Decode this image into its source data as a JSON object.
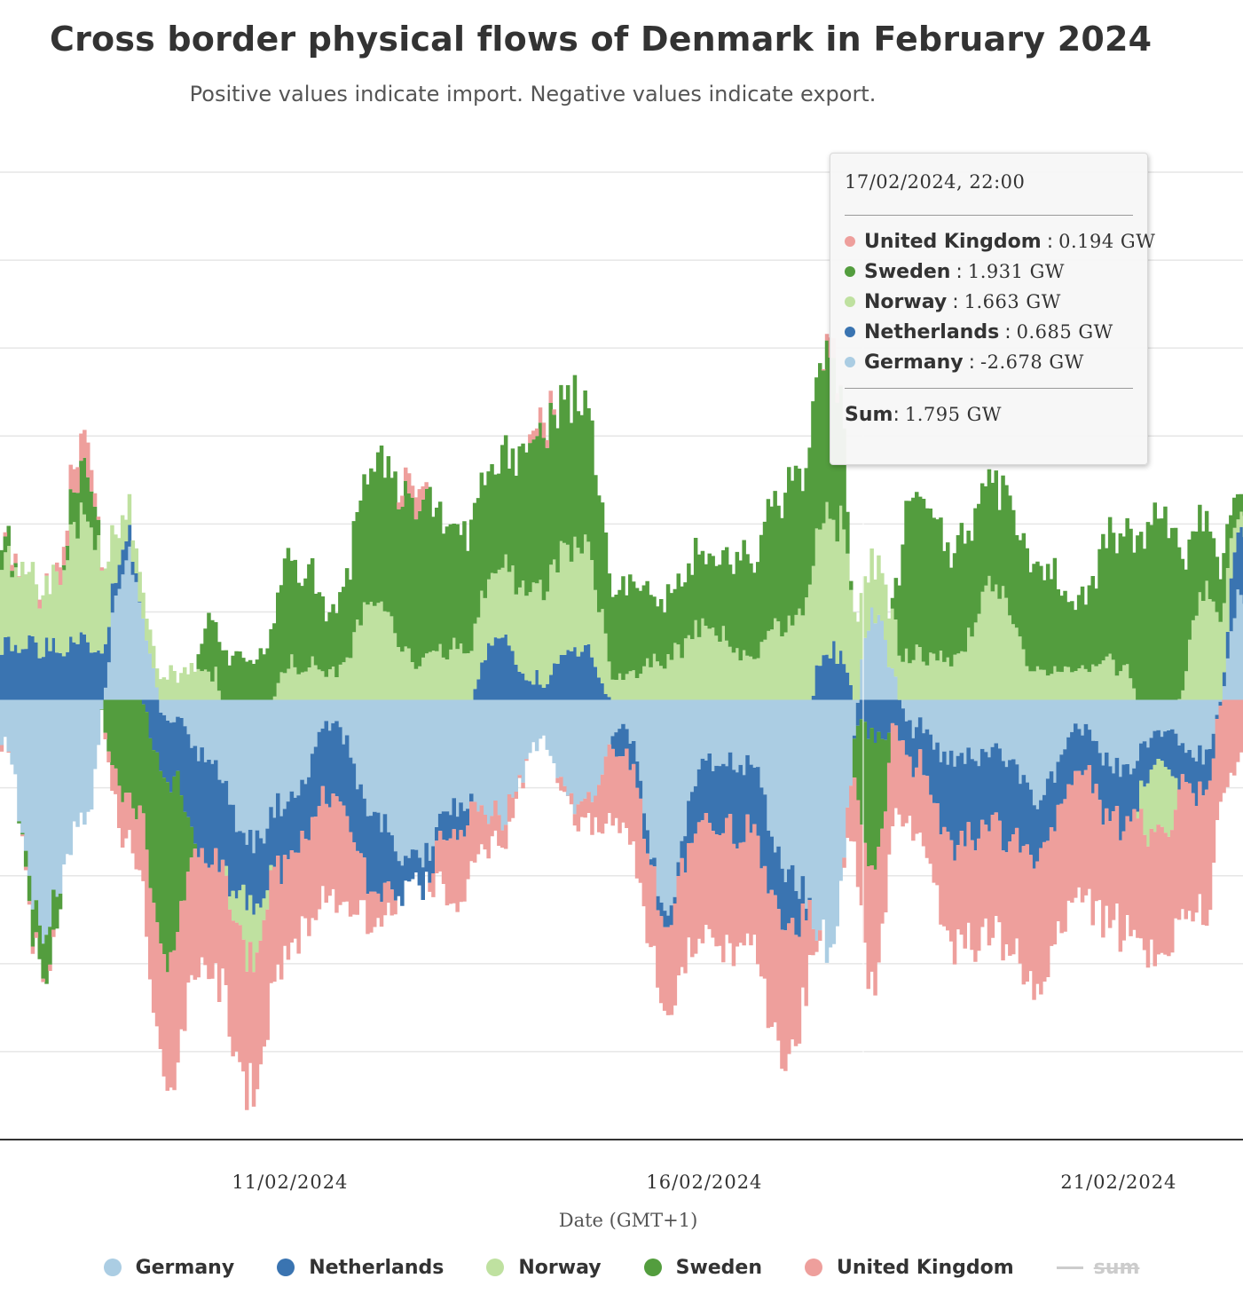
{
  "title": "Cross border physical flows of Denmark in February 2024",
  "subtitle": "Positive values indicate import. Negative values indicate export.",
  "chart_data": {
    "type": "area",
    "stacked": true,
    "x_unit": "date",
    "xlabel": "Date (GMT+1)",
    "x_ticks": [
      "11/02/2024",
      "16/02/2024",
      "21/02/2024"
    ],
    "y_unit": "GW",
    "ylim": [
      -5,
      6
    ],
    "y_gridlines": [
      -4,
      -3,
      -2,
      -1,
      0,
      1,
      2,
      3,
      4,
      5,
      6
    ],
    "y_tick_labels_visible": false,
    "x_range": [
      "2024-02-07T12:00",
      "2024-02-22T12:00"
    ],
    "sample_times": [
      "2024-02-07T12:00",
      "2024-02-08T00:00",
      "2024-02-08T12:00",
      "2024-02-09T00:00",
      "2024-02-09T12:00",
      "2024-02-10T00:00",
      "2024-02-10T12:00",
      "2024-02-11T00:00",
      "2024-02-11T12:00",
      "2024-02-12T00:00",
      "2024-02-12T12:00",
      "2024-02-13T00:00",
      "2024-02-13T12:00",
      "2024-02-14T00:00",
      "2024-02-14T12:00",
      "2024-02-15T00:00",
      "2024-02-15T12:00",
      "2024-02-16T00:00",
      "2024-02-16T12:00",
      "2024-02-17T00:00",
      "2024-02-17T12:00",
      "2024-02-18T00:00",
      "2024-02-18T12:00",
      "2024-02-19T00:00",
      "2024-02-19T12:00",
      "2024-02-20T00:00",
      "2024-02-20T12:00",
      "2024-02-21T00:00",
      "2024-02-21T12:00",
      "2024-02-22T00:00",
      "2024-02-22T12:00"
    ],
    "series": [
      {
        "name": "Germany",
        "color": "#abcde3",
        "values": [
          -0.4,
          -2.6,
          -1.3,
          1.6,
          -0.2,
          -0.7,
          -1.6,
          -1.1,
          -0.3,
          -1.3,
          -1.9,
          -1.2,
          -1.3,
          -0.5,
          -1.3,
          -0.3,
          -2.3,
          -0.7,
          -0.7,
          -2.0,
          -2.8,
          1.0,
          -0.3,
          -0.7,
          -0.6,
          -1.1,
          -0.3,
          -0.8,
          -0.4,
          -0.6,
          1.2
        ]
      },
      {
        "name": "Netherlands",
        "color": "#3a74b1",
        "values": [
          0.6,
          0.6,
          0.7,
          0.2,
          -0.7,
          -1.1,
          -0.7,
          -0.6,
          -0.8,
          -0.8,
          -0.3,
          -0.3,
          0.7,
          0.2,
          0.6,
          -0.3,
          -0.1,
          -0.7,
          -0.8,
          -0.6,
          0.6,
          -0.4,
          -0.4,
          -0.9,
          -0.9,
          -0.6,
          -0.5,
          -0.6,
          -0.4,
          -0.4,
          0.8
        ]
      },
      {
        "name": "Norway",
        "color": "#bfe1a0",
        "values": [
          1.0,
          0.7,
          1.4,
          0.3,
          0.3,
          0.3,
          -0.6,
          0.4,
          0.3,
          1.1,
          0.4,
          0.6,
          0.8,
          1.1,
          1.2,
          0.2,
          0.5,
          0.8,
          0.5,
          0.9,
          1.6,
          0.6,
          0.5,
          0.5,
          1.3,
          0.3,
          0.4,
          0.4,
          -0.9,
          1.2,
          0.2
        ]
      },
      {
        "name": "Sweden",
        "color": "#539d3e",
        "values": [
          0.3,
          -0.5,
          0.6,
          -1.1,
          -2.0,
          0.6,
          0.4,
          1.2,
          0.7,
          1.6,
          1.8,
          1.4,
          1.2,
          1.8,
          1.6,
          1.0,
          0.7,
          0.8,
          1.1,
          1.5,
          1.9,
          -1.6,
          1.8,
          1.3,
          1.2,
          1.2,
          0.8,
          1.5,
          2.1,
          0.8,
          0.2
        ]
      },
      {
        "name": "United Kingdom",
        "color": "#ee9f9c",
        "values": [
          0.0,
          0.0,
          0.3,
          -0.5,
          -1.4,
          -1.3,
          -1.5,
          -1.0,
          -1.2,
          -0.4,
          0.2,
          -0.8,
          -0.3,
          0.1,
          -0.2,
          -0.9,
          -1.0,
          -1.3,
          -1.3,
          -1.5,
          0.2,
          -1.3,
          -0.8,
          -1.1,
          -1.2,
          -1.5,
          -1.4,
          -1.2,
          -1.4,
          -1.4,
          -0.6
        ]
      }
    ],
    "crosshair_at": "17/02/2024, 22:00",
    "legend": [
      "Germany",
      "Netherlands",
      "Norway",
      "Sweden",
      "United Kingdom",
      "sum"
    ],
    "legend_placement": "bottom",
    "hidden_series": [
      "sum"
    ],
    "grid": true
  },
  "tooltip": {
    "header": "17/02/2024, 22:00",
    "rows": [
      {
        "name": "United Kingdom",
        "value": "0.194 GW",
        "color": "#ee9f9c"
      },
      {
        "name": "Sweden",
        "value": "1.931 GW",
        "color": "#539d3e"
      },
      {
        "name": "Norway",
        "value": "1.663 GW",
        "color": "#bfe1a0"
      },
      {
        "name": "Netherlands",
        "value": "0.685 GW",
        "color": "#3a74b1"
      },
      {
        "name": "Germany",
        "value": "-2.678 GW",
        "color": "#abcde3"
      }
    ],
    "sum_label": "Sum",
    "sum_value": "1.795 GW"
  },
  "legend_items": [
    {
      "label": "Germany",
      "color": "#abcde3"
    },
    {
      "label": "Netherlands",
      "color": "#3a74b1"
    },
    {
      "label": "Norway",
      "color": "#bfe1a0"
    },
    {
      "label": "Sweden",
      "color": "#539d3e"
    },
    {
      "label": "United Kingdom",
      "color": "#ee9f9c"
    },
    {
      "label": "sum",
      "color": "#cccccc",
      "hidden": true
    }
  ]
}
